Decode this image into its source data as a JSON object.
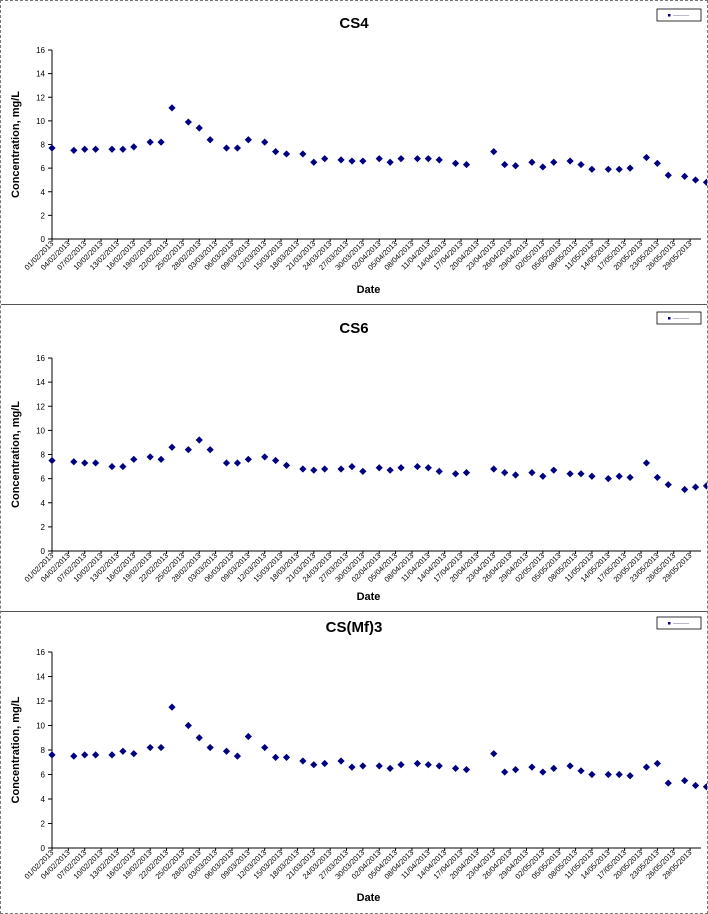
{
  "chart_data": [
    {
      "type": "scatter",
      "title": "CS4",
      "xlabel": "Date",
      "ylabel": "Concentration, mg/L",
      "ylim": [
        0,
        16
      ],
      "yticks": [
        0,
        2,
        4,
        6,
        8,
        10,
        12,
        14,
        16
      ],
      "xlim": [
        "01/02/2013",
        "31/05/2013"
      ],
      "xticks": [
        "01/02/2013",
        "04/02/2013",
        "07/02/2013",
        "10/02/2013",
        "13/02/2013",
        "16/02/2013",
        "19/02/2013",
        "22/02/2013",
        "25/02/2013",
        "28/02/2013",
        "03/03/2013",
        "06/03/2013",
        "09/03/2013",
        "12/03/2013",
        "15/03/2013",
        "18/03/2013",
        "21/03/2013",
        "24/03/2013",
        "27/03/2013",
        "30/03/2013",
        "02/04/2013",
        "05/04/2013",
        "08/04/2013",
        "11/04/2013",
        "14/04/2013",
        "17/04/2013",
        "20/04/2013",
        "23/04/2013",
        "26/04/2013",
        "29/04/2013",
        "02/05/2013",
        "05/05/2013",
        "08/05/2013",
        "11/05/2013",
        "14/05/2013",
        "17/05/2013",
        "20/05/2013",
        "23/05/2013",
        "26/05/2013",
        "29/05/2013"
      ],
      "grid": false,
      "legend_position": "top-right",
      "marker_color": "#000080",
      "series": [
        {
          "points": [
            [
              "01/02/2013",
              7.7
            ],
            [
              "05/02/2013",
              7.5
            ],
            [
              "07/02/2013",
              7.6
            ],
            [
              "09/02/2013",
              7.6
            ],
            [
              "12/02/2013",
              7.6
            ],
            [
              "14/02/2013",
              7.6
            ],
            [
              "16/02/2013",
              7.8
            ],
            [
              "19/02/2013",
              8.2
            ],
            [
              "21/02/2013",
              8.2
            ],
            [
              "23/02/2013",
              11.1
            ],
            [
              "26/02/2013",
              9.9
            ],
            [
              "28/02/2013",
              9.4
            ],
            [
              "02/03/2013",
              8.4
            ],
            [
              "05/03/2013",
              7.7
            ],
            [
              "07/03/2013",
              7.7
            ],
            [
              "09/03/2013",
              8.4
            ],
            [
              "12/03/2013",
              8.2
            ],
            [
              "14/03/2013",
              7.4
            ],
            [
              "16/03/2013",
              7.2
            ],
            [
              "19/03/2013",
              7.2
            ],
            [
              "21/03/2013",
              6.5
            ],
            [
              "23/03/2013",
              6.8
            ],
            [
              "26/03/2013",
              6.7
            ],
            [
              "28/03/2013",
              6.6
            ],
            [
              "30/03/2013",
              6.6
            ],
            [
              "02/04/2013",
              6.8
            ],
            [
              "04/04/2013",
              6.5
            ],
            [
              "06/04/2013",
              6.8
            ],
            [
              "09/04/2013",
              6.8
            ],
            [
              "11/04/2013",
              6.8
            ],
            [
              "13/04/2013",
              6.7
            ],
            [
              "16/04/2013",
              6.4
            ],
            [
              "18/04/2013",
              6.3
            ],
            [
              "23/04/2013",
              7.4
            ],
            [
              "25/04/2013",
              6.3
            ],
            [
              "27/04/2013",
              6.2
            ],
            [
              "30/04/2013",
              6.5
            ],
            [
              "02/05/2013",
              6.1
            ],
            [
              "04/05/2013",
              6.5
            ],
            [
              "07/05/2013",
              6.6
            ],
            [
              "09/05/2013",
              6.3
            ],
            [
              "11/05/2013",
              5.9
            ],
            [
              "14/05/2013",
              5.9
            ],
            [
              "16/05/2013",
              5.9
            ],
            [
              "18/05/2013",
              6.0
            ],
            [
              "21/05/2013",
              6.9
            ],
            [
              "23/05/2013",
              6.4
            ],
            [
              "25/05/2013",
              5.4
            ],
            [
              "28/05/2013",
              5.3
            ],
            [
              "30/05/2013",
              5.0
            ],
            [
              "01/06/2013",
              4.8
            ]
          ]
        }
      ]
    },
    {
      "type": "scatter",
      "title": "CS6",
      "xlabel": "Date",
      "ylabel": "Concentration, mg/L",
      "ylim": [
        0,
        16
      ],
      "yticks": [
        0,
        2,
        4,
        6,
        8,
        10,
        12,
        14,
        16
      ],
      "xlim": [
        "01/02/2013",
        "31/05/2013"
      ],
      "xticks": [
        "01/02/2013",
        "04/02/2013",
        "07/02/2013",
        "10/02/2013",
        "13/02/2013",
        "16/02/2013",
        "19/02/2013",
        "22/02/2013",
        "25/02/2013",
        "28/02/2013",
        "03/03/2013",
        "06/03/2013",
        "09/03/2013",
        "12/03/2013",
        "15/03/2013",
        "18/03/2013",
        "21/03/2013",
        "24/03/2013",
        "27/03/2013",
        "30/03/2013",
        "02/04/2013",
        "05/04/2013",
        "08/04/2013",
        "11/04/2013",
        "14/04/2013",
        "17/04/2013",
        "20/04/2013",
        "23/04/2013",
        "26/04/2013",
        "29/04/2013",
        "02/05/2013",
        "05/05/2013",
        "08/05/2013",
        "11/05/2013",
        "14/05/2013",
        "17/05/2013",
        "20/05/2013",
        "23/05/2013",
        "26/05/2013",
        "29/05/2013"
      ],
      "grid": false,
      "legend_position": "top-right",
      "marker_color": "#000080",
      "series": [
        {
          "points": [
            [
              "01/02/2013",
              7.5
            ],
            [
              "05/02/2013",
              7.4
            ],
            [
              "07/02/2013",
              7.3
            ],
            [
              "09/02/2013",
              7.3
            ],
            [
              "12/02/2013",
              7.0
            ],
            [
              "14/02/2013",
              7.0
            ],
            [
              "16/02/2013",
              7.6
            ],
            [
              "19/02/2013",
              7.8
            ],
            [
              "21/02/2013",
              7.6
            ],
            [
              "23/02/2013",
              8.6
            ],
            [
              "26/02/2013",
              8.4
            ],
            [
              "28/02/2013",
              9.2
            ],
            [
              "02/03/2013",
              8.4
            ],
            [
              "05/03/2013",
              7.3
            ],
            [
              "07/03/2013",
              7.3
            ],
            [
              "09/03/2013",
              7.6
            ],
            [
              "12/03/2013",
              7.8
            ],
            [
              "14/03/2013",
              7.5
            ],
            [
              "16/03/2013",
              7.1
            ],
            [
              "19/03/2013",
              6.8
            ],
            [
              "21/03/2013",
              6.7
            ],
            [
              "23/03/2013",
              6.8
            ],
            [
              "26/03/2013",
              6.8
            ],
            [
              "28/03/2013",
              7.0
            ],
            [
              "30/03/2013",
              6.6
            ],
            [
              "02/04/2013",
              6.9
            ],
            [
              "04/04/2013",
              6.7
            ],
            [
              "06/04/2013",
              6.9
            ],
            [
              "09/04/2013",
              7.0
            ],
            [
              "11/04/2013",
              6.9
            ],
            [
              "13/04/2013",
              6.6
            ],
            [
              "16/04/2013",
              6.4
            ],
            [
              "18/04/2013",
              6.5
            ],
            [
              "23/04/2013",
              6.8
            ],
            [
              "25/04/2013",
              6.5
            ],
            [
              "27/04/2013",
              6.3
            ],
            [
              "30/04/2013",
              6.5
            ],
            [
              "02/05/2013",
              6.2
            ],
            [
              "04/05/2013",
              6.7
            ],
            [
              "07/05/2013",
              6.4
            ],
            [
              "09/05/2013",
              6.4
            ],
            [
              "11/05/2013",
              6.2
            ],
            [
              "14/05/2013",
              6.0
            ],
            [
              "16/05/2013",
              6.2
            ],
            [
              "18/05/2013",
              6.1
            ],
            [
              "21/05/2013",
              7.3
            ],
            [
              "23/05/2013",
              6.1
            ],
            [
              "25/05/2013",
              5.5
            ],
            [
              "28/05/2013",
              5.1
            ],
            [
              "30/05/2013",
              5.3
            ],
            [
              "01/06/2013",
              5.4
            ]
          ]
        }
      ]
    },
    {
      "type": "scatter",
      "title": "CS(Mf)3",
      "xlabel": "Date",
      "ylabel": "Concentration, mg/L",
      "ylim": [
        0,
        16
      ],
      "yticks": [
        0,
        2,
        4,
        6,
        8,
        10,
        12,
        14,
        16
      ],
      "xlim": [
        "01/02/2013",
        "31/05/2013"
      ],
      "xticks": [
        "01/02/2013",
        "04/02/2013",
        "07/02/2013",
        "10/02/2013",
        "13/02/2013",
        "16/02/2013",
        "19/02/2013",
        "22/02/2013",
        "25/02/2013",
        "28/02/2013",
        "03/03/2013",
        "06/03/2013",
        "09/03/2013",
        "12/03/2013",
        "15/03/2013",
        "18/03/2013",
        "21/03/2013",
        "24/03/2013",
        "27/03/2013",
        "30/03/2013",
        "02/04/2013",
        "05/04/2013",
        "08/04/2013",
        "11/04/2013",
        "14/04/2013",
        "17/04/2013",
        "20/04/2013",
        "23/04/2013",
        "26/04/2013",
        "29/04/2013",
        "02/05/2013",
        "05/05/2013",
        "08/05/2013",
        "11/05/2013",
        "14/05/2013",
        "17/05/2013",
        "20/05/2013",
        "23/05/2013",
        "26/05/2013",
        "29/05/2013"
      ],
      "grid": false,
      "legend_position": "top-right",
      "marker_color": "#000080",
      "series": [
        {
          "points": [
            [
              "01/02/2013",
              7.6
            ],
            [
              "05/02/2013",
              7.5
            ],
            [
              "07/02/2013",
              7.6
            ],
            [
              "09/02/2013",
              7.6
            ],
            [
              "12/02/2013",
              7.6
            ],
            [
              "14/02/2013",
              7.9
            ],
            [
              "16/02/2013",
              7.7
            ],
            [
              "19/02/2013",
              8.2
            ],
            [
              "21/02/2013",
              8.2
            ],
            [
              "23/02/2013",
              11.5
            ],
            [
              "26/02/2013",
              10.0
            ],
            [
              "28/02/2013",
              9.0
            ],
            [
              "02/03/2013",
              8.2
            ],
            [
              "05/03/2013",
              7.9
            ],
            [
              "07/03/2013",
              7.5
            ],
            [
              "09/03/2013",
              9.1
            ],
            [
              "12/03/2013",
              8.2
            ],
            [
              "14/03/2013",
              7.4
            ],
            [
              "16/03/2013",
              7.4
            ],
            [
              "19/03/2013",
              7.1
            ],
            [
              "21/03/2013",
              6.8
            ],
            [
              "23/03/2013",
              6.9
            ],
            [
              "26/03/2013",
              7.1
            ],
            [
              "28/03/2013",
              6.6
            ],
            [
              "30/03/2013",
              6.7
            ],
            [
              "02/04/2013",
              6.7
            ],
            [
              "04/04/2013",
              6.5
            ],
            [
              "06/04/2013",
              6.8
            ],
            [
              "09/04/2013",
              6.9
            ],
            [
              "11/04/2013",
              6.8
            ],
            [
              "13/04/2013",
              6.7
            ],
            [
              "16/04/2013",
              6.5
            ],
            [
              "18/04/2013",
              6.4
            ],
            [
              "23/04/2013",
              7.7
            ],
            [
              "25/04/2013",
              6.2
            ],
            [
              "27/04/2013",
              6.4
            ],
            [
              "30/04/2013",
              6.6
            ],
            [
              "02/05/2013",
              6.2
            ],
            [
              "04/05/2013",
              6.5
            ],
            [
              "07/05/2013",
              6.7
            ],
            [
              "09/05/2013",
              6.3
            ],
            [
              "11/05/2013",
              6.0
            ],
            [
              "14/05/2013",
              6.0
            ],
            [
              "16/05/2013",
              6.0
            ],
            [
              "18/05/2013",
              5.9
            ],
            [
              "21/05/2013",
              6.6
            ],
            [
              "23/05/2013",
              6.9
            ],
            [
              "25/05/2013",
              5.3
            ],
            [
              "28/05/2013",
              5.5
            ],
            [
              "30/05/2013",
              5.1
            ],
            [
              "01/06/2013",
              5.0
            ]
          ]
        }
      ]
    }
  ]
}
